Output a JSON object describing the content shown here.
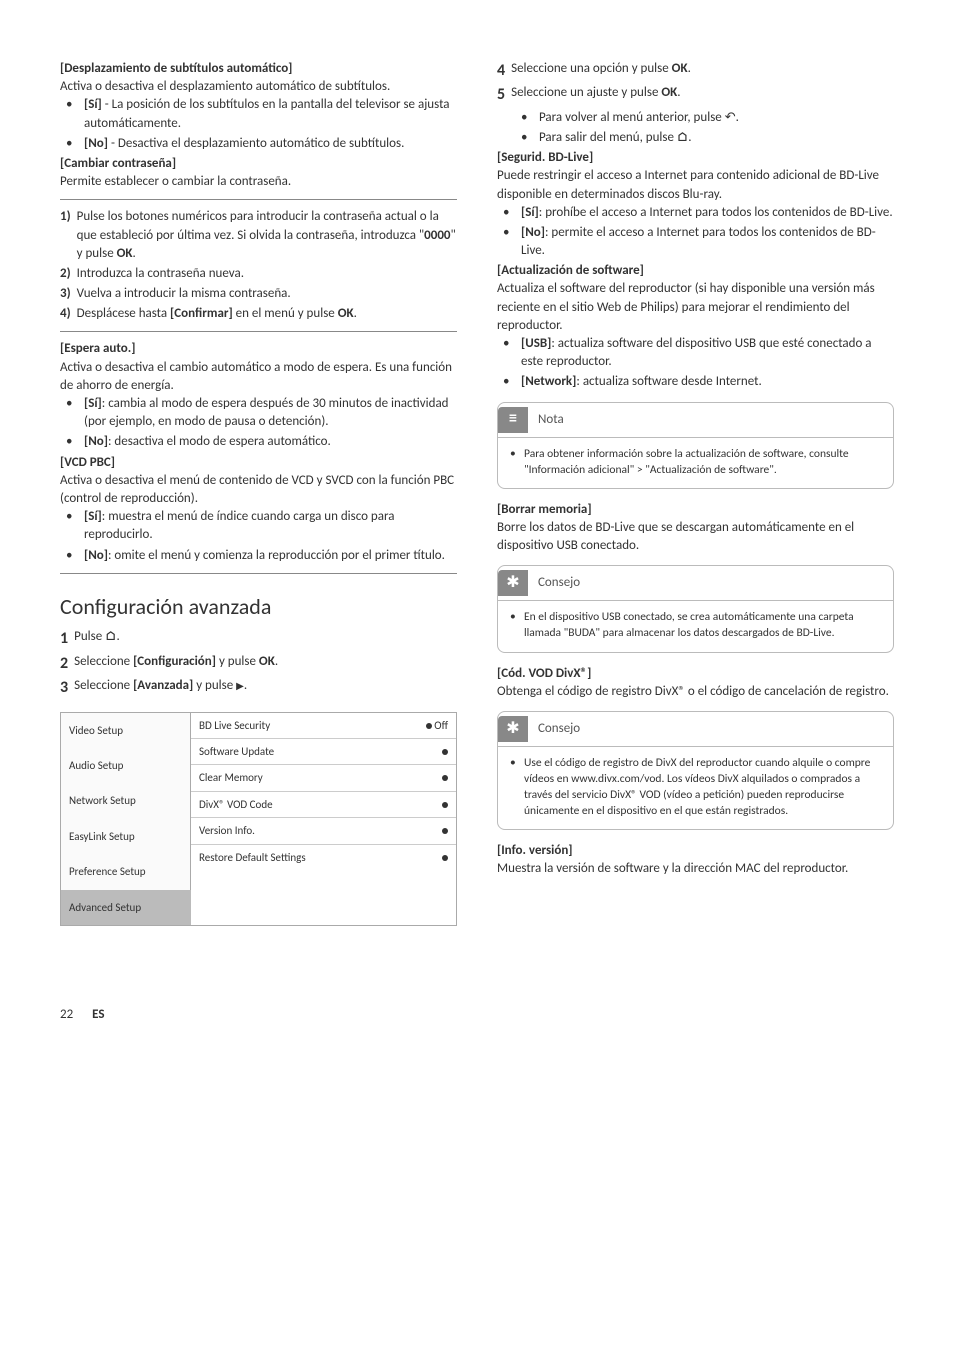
{
  "left": {
    "h1": "[Desplazamiento de subtítulos automático]",
    "p1": "Activa o desactiva el desplazamiento automático de subtítulos.",
    "l1a_b": "[Sí]",
    "l1a": " - La posición de los subtítulos en la pantalla del televisor se ajusta automáticamente.",
    "l1b_b": "[No]",
    "l1b": " - Desactiva el desplazamiento automático de subtítulos.",
    "h2": "[Cambiar contraseña]",
    "p2": "Permite establecer o cambiar la contraseña.",
    "s1_n": "1)",
    "s1": " Pulse los botones numéricos para introducir la contraseña actual o la que estableció por última vez. Si olvida la contraseña, introduzca \"",
    "s1_b": "0000",
    "s1_c": "\" y pulse ",
    "s1_ok": "OK",
    "s2_n": "2)",
    "s2": " Introduzca la contraseña nueva.",
    "s3_n": "3)",
    "s3": " Vuelva a introducir la misma contraseña.",
    "s4_n": "4)",
    "s4": " Desplácese hasta ",
    "s4_b": "[Confirmar]",
    "s4_c": " en el menú y pulse ",
    "s4_ok": "OK",
    "h3": "[Espera auto.]",
    "p3": "Activa o desactiva el cambio automático a modo de espera. Es una función de ahorro de energía.",
    "l3a_b": "[Sí]",
    "l3a": ": cambia al modo de espera después de 30 minutos de inactividad (por ejemplo, en modo de pausa o detención).",
    "l3b_b": "[No]",
    "l3b": ": desactiva el modo de espera automático.",
    "h4": "[VCD PBC]",
    "p4": "Activa o desactiva el menú de contenido de VCD y SVCD con la función PBC (control de reproducción).",
    "l4a_b": "[Sí]",
    "l4a": ": muestra el menú de índice cuando carga un disco para reproducirlo.",
    "l4b_b": "[No]",
    "l4b": ": omite el menú y comienza la reproducción por el primer título.",
    "title": "Configuración avanzada",
    "st1_n": "1",
    "st1": "Pulse ",
    "st2_n": "2",
    "st2": "Seleccione ",
    "st2_b": "[Configuración]",
    "st2_c": " y pulse ",
    "st2_ok": "OK",
    "st3_n": "3",
    "st3": "Seleccione ",
    "st3_b": "[Avanzada]",
    "st3_c": " y pulse ",
    "setup": {
      "left": [
        "Video Setup",
        "Audio Setup",
        "Network Setup",
        "EasyLink Setup",
        "Preference Setup",
        "Advanced Setup"
      ],
      "selected_index": 5,
      "right": [
        {
          "label": "BD Live Security",
          "val": "Off",
          "dot": true
        },
        {
          "label": "Software Update",
          "val": "",
          "dot": true
        },
        {
          "label": "Clear Memory",
          "val": "",
          "dot": true
        },
        {
          "label": "DivX® VOD Code",
          "val": "",
          "dot": true
        },
        {
          "label": "Version Info.",
          "val": "",
          "dot": true
        },
        {
          "label": "Restore Default Settings",
          "val": "",
          "dot": true
        }
      ]
    }
  },
  "right": {
    "st4_n": "4",
    "st4": "Seleccione una opción y pulse ",
    "st4_ok": "OK",
    "st5_n": "5",
    "st5": "Seleccione un ajuste y pulse ",
    "st5_ok": "OK",
    "sb1": "Para volver al menú anterior, pulse ",
    "sb2": "Para salir del menú, pulse ",
    "h1": "[Segurid. BD-Live]",
    "p1": "Puede restringir el acceso a Internet para contenido adicional de BD-Live disponible en determinados discos Blu-ray.",
    "l1a_b": "[Sí]",
    "l1a": ": prohíbe el acceso a Internet para todos los contenidos de BD-Live.",
    "l1b_b": "[No]",
    "l1b": ": permite el acceso a Internet para todos los contenidos de BD-Live.",
    "h2": "[Actualización de software]",
    "p2": "Actualiza el software del reproductor (si hay disponible una versión más reciente en el sitio Web de Philips) para mejorar el rendimiento del reproductor.",
    "l2a_b": "[USB]",
    "l2a": ": actualiza software del dispositivo USB que esté conectado a este reproductor.",
    "l2b_b": "[Network]",
    "l2b": ": actualiza software desde Internet.",
    "note_label": "Nota",
    "note_body": "Para obtener información sobre la actualización de software, consulte \"Información adicional\" > \"Actualización de software\".",
    "h3": "[Borrar memoria]",
    "p3": "Borre los datos de BD-Live que se descargan automáticamente en el dispositivo USB conectado.",
    "tip1_label": "Consejo",
    "tip1_body": "En el dispositivo USB conectado, se crea automáticamente una carpeta llamada \"BUDA\" para almacenar los datos descargados de BD-Live.",
    "h4": "[Cód. VOD DivX®]",
    "p4": "Obtenga el código de registro DivX® o el código de cancelación de registro.",
    "tip2_label": "Consejo",
    "tip2_body": "Use el código de registro de DivX del reproductor cuando alquile o compre vídeos en www.divx.com/vod. Los vídeos DivX alquilados o comprados a través del servicio DivX® VOD (vídeo a petición) pueden reproducirse únicamente en el dispositivo en el que están registrados.",
    "h5": "[Info. versión]",
    "p5": "Muestra la versión de software y la dirección MAC del reproductor."
  },
  "footer": {
    "page": "22",
    "es": "ES"
  }
}
